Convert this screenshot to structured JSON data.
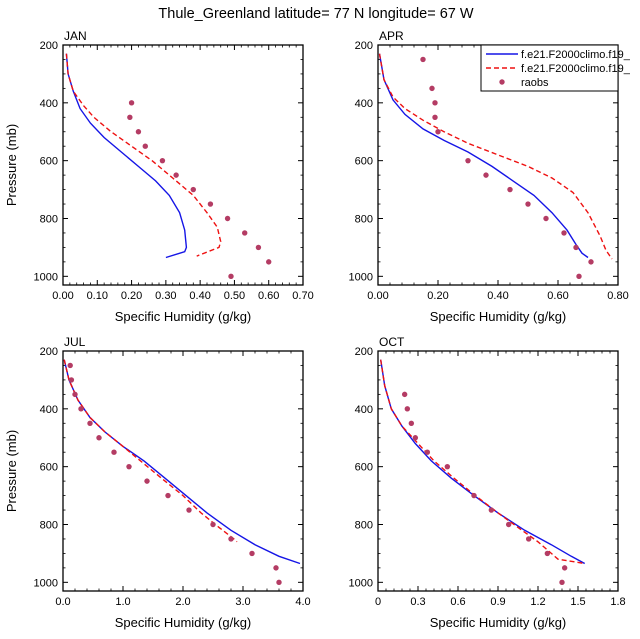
{
  "figure_title": "Thule_Greenland  latitude= 77 N longitude= 67 W",
  "colors": {
    "model1": "#1515e6",
    "model2": "#ee1111",
    "raobs": "#b43c64"
  },
  "legend": [
    {
      "label": "f.e21.F2000climo.f19_",
      "style": "solid",
      "color": "#1515e6"
    },
    {
      "label": "f.e21.F2000climo.f19_",
      "style": "dashed",
      "color": "#ee1111"
    },
    {
      "label": "raobs",
      "style": "marker",
      "color": "#b43c64"
    }
  ],
  "chart_data": [
    {
      "type": "line",
      "month": "JAN",
      "xlabel": "Specific Humidity (g/kg)",
      "ylabel": "Pressure (mb)",
      "xlim": [
        0,
        0.7
      ],
      "ylim": [
        1030,
        200
      ],
      "xticks": [
        "0.00",
        "0.10",
        "0.20",
        "0.30",
        "0.40",
        "0.50",
        "0.60",
        "0.70"
      ],
      "yticks": [
        "200",
        "400",
        "600",
        "800",
        "1000"
      ],
      "series": [
        {
          "style": "solid",
          "color": "#1515e6",
          "points": [
            [
              0.01,
              230
            ],
            [
              0.015,
              300
            ],
            [
              0.03,
              360
            ],
            [
              0.05,
              420
            ],
            [
              0.08,
              470
            ],
            [
              0.12,
              520
            ],
            [
              0.17,
              570
            ],
            [
              0.22,
              620
            ],
            [
              0.27,
              670
            ],
            [
              0.31,
              720
            ],
            [
              0.34,
              780
            ],
            [
              0.355,
              840
            ],
            [
              0.36,
              900
            ],
            [
              0.355,
              915
            ],
            [
              0.3,
              935
            ]
          ]
        },
        {
          "style": "dashed",
          "color": "#ee1111",
          "points": [
            [
              0.01,
              230
            ],
            [
              0.015,
              300
            ],
            [
              0.03,
              360
            ],
            [
              0.06,
              410
            ],
            [
              0.09,
              450
            ],
            [
              0.14,
              500
            ],
            [
              0.2,
              550
            ],
            [
              0.26,
              600
            ],
            [
              0.32,
              660
            ],
            [
              0.38,
              720
            ],
            [
              0.42,
              780
            ],
            [
              0.45,
              830
            ],
            [
              0.46,
              880
            ],
            [
              0.455,
              900
            ],
            [
              0.39,
              930
            ]
          ]
        },
        {
          "style": "marker",
          "color": "#b43c64",
          "points": [
            [
              0.2,
              400
            ],
            [
              0.195,
              450
            ],
            [
              0.22,
              500
            ],
            [
              0.24,
              550
            ],
            [
              0.29,
              600
            ],
            [
              0.33,
              650
            ],
            [
              0.38,
              700
            ],
            [
              0.43,
              750
            ],
            [
              0.48,
              800
            ],
            [
              0.53,
              850
            ],
            [
              0.57,
              900
            ],
            [
              0.6,
              950
            ],
            [
              0.49,
              1000
            ]
          ]
        }
      ]
    },
    {
      "type": "line",
      "month": "APR",
      "xlabel": "Specific Humidity (g/kg)",
      "ylabel": "",
      "xlim": [
        0,
        0.8
      ],
      "ylim": [
        1030,
        200
      ],
      "xticks": [
        "0.00",
        "0.20",
        "0.40",
        "0.60",
        "0.80"
      ],
      "yticks": [
        "200",
        "400",
        "600",
        "800",
        "1000"
      ],
      "series": [
        {
          "style": "solid",
          "color": "#1515e6",
          "points": [
            [
              0.005,
              230
            ],
            [
              0.02,
              320
            ],
            [
              0.05,
              390
            ],
            [
              0.09,
              440
            ],
            [
              0.15,
              490
            ],
            [
              0.22,
              530
            ],
            [
              0.3,
              570
            ],
            [
              0.38,
              620
            ],
            [
              0.45,
              670
            ],
            [
              0.52,
              720
            ],
            [
              0.58,
              780
            ],
            [
              0.63,
              840
            ],
            [
              0.66,
              890
            ],
            [
              0.68,
              920
            ],
            [
              0.7,
              935
            ]
          ]
        },
        {
          "style": "dashed",
          "color": "#ee1111",
          "points": [
            [
              0.005,
              230
            ],
            [
              0.02,
              320
            ],
            [
              0.05,
              380
            ],
            [
              0.09,
              420
            ],
            [
              0.15,
              460
            ],
            [
              0.22,
              500
            ],
            [
              0.3,
              540
            ],
            [
              0.4,
              580
            ],
            [
              0.5,
              620
            ],
            [
              0.58,
              660
            ],
            [
              0.65,
              710
            ],
            [
              0.7,
              780
            ],
            [
              0.74,
              860
            ],
            [
              0.76,
              910
            ],
            [
              0.78,
              940
            ]
          ]
        },
        {
          "style": "marker",
          "color": "#b43c64",
          "points": [
            [
              0.15,
              250
            ],
            [
              0.18,
              350
            ],
            [
              0.19,
              400
            ],
            [
              0.19,
              450
            ],
            [
              0.2,
              500
            ],
            [
              0.3,
              600
            ],
            [
              0.36,
              650
            ],
            [
              0.44,
              700
            ],
            [
              0.5,
              750
            ],
            [
              0.56,
              800
            ],
            [
              0.62,
              850
            ],
            [
              0.66,
              900
            ],
            [
              0.71,
              950
            ],
            [
              0.67,
              1000
            ]
          ]
        }
      ]
    },
    {
      "type": "line",
      "month": "JUL",
      "xlabel": "Specific Humidity (g/kg)",
      "ylabel": "Pressure (mb)",
      "xlim": [
        0,
        4.0
      ],
      "ylim": [
        1030,
        200
      ],
      "xticks": [
        "0.0",
        "1.0",
        "2.0",
        "3.0",
        "4.0"
      ],
      "yticks": [
        "200",
        "400",
        "600",
        "800",
        "1000"
      ],
      "series": [
        {
          "style": "solid",
          "color": "#1515e6",
          "points": [
            [
              0.02,
              230
            ],
            [
              0.1,
              300
            ],
            [
              0.25,
              370
            ],
            [
              0.45,
              430
            ],
            [
              0.7,
              480
            ],
            [
              1.0,
              530
            ],
            [
              1.35,
              580
            ],
            [
              1.7,
              640
            ],
            [
              2.05,
              700
            ],
            [
              2.4,
              760
            ],
            [
              2.8,
              820
            ],
            [
              3.2,
              870
            ],
            [
              3.6,
              910
            ],
            [
              3.95,
              935
            ]
          ]
        },
        {
          "style": "dashed",
          "color": "#ee1111",
          "points": [
            [
              0.02,
              230
            ],
            [
              0.1,
              300
            ],
            [
              0.25,
              370
            ],
            [
              0.45,
              430
            ],
            [
              0.7,
              480
            ],
            [
              1.0,
              530
            ],
            [
              1.35,
              590
            ],
            [
              1.7,
              650
            ],
            [
              2.0,
              700
            ],
            [
              2.3,
              760
            ],
            [
              2.6,
              810
            ],
            [
              2.85,
              850
            ],
            [
              2.9,
              860
            ]
          ]
        },
        {
          "style": "marker",
          "color": "#b43c64",
          "points": [
            [
              0.12,
              250
            ],
            [
              0.14,
              300
            ],
            [
              0.2,
              350
            ],
            [
              0.3,
              400
            ],
            [
              0.45,
              450
            ],
            [
              0.6,
              500
            ],
            [
              0.85,
              550
            ],
            [
              1.1,
              600
            ],
            [
              1.4,
              650
            ],
            [
              1.75,
              700
            ],
            [
              2.1,
              750
            ],
            [
              2.5,
              800
            ],
            [
              2.8,
              850
            ],
            [
              3.15,
              900
            ],
            [
              3.55,
              950
            ],
            [
              3.6,
              1000
            ]
          ]
        }
      ]
    },
    {
      "type": "line",
      "month": "OCT",
      "xlabel": "Specific Humidity (g/kg)",
      "ylabel": "",
      "xlim": [
        0,
        1.8
      ],
      "ylim": [
        1030,
        200
      ],
      "xticks": [
        "0",
        "0.3",
        "0.6",
        "0.9",
        "1.2",
        "1.5",
        "1.8"
      ],
      "yticks": [
        "200",
        "400",
        "600",
        "800",
        "1000"
      ],
      "series": [
        {
          "style": "solid",
          "color": "#1515e6",
          "points": [
            [
              0.02,
              230
            ],
            [
              0.05,
              320
            ],
            [
              0.1,
              400
            ],
            [
              0.18,
              460
            ],
            [
              0.28,
              520
            ],
            [
              0.4,
              580
            ],
            [
              0.55,
              640
            ],
            [
              0.72,
              700
            ],
            [
              0.9,
              760
            ],
            [
              1.1,
              820
            ],
            [
              1.3,
              870
            ],
            [
              1.45,
              910
            ],
            [
              1.55,
              935
            ]
          ]
        },
        {
          "style": "dashed",
          "color": "#ee1111",
          "points": [
            [
              0.02,
              230
            ],
            [
              0.05,
              320
            ],
            [
              0.1,
              400
            ],
            [
              0.18,
              460
            ],
            [
              0.3,
              520
            ],
            [
              0.42,
              580
            ],
            [
              0.57,
              640
            ],
            [
              0.73,
              700
            ],
            [
              0.9,
              760
            ],
            [
              1.05,
              810
            ],
            [
              1.2,
              860
            ],
            [
              1.35,
              920
            ],
            [
              1.55,
              935
            ]
          ]
        },
        {
          "style": "marker",
          "color": "#b43c64",
          "points": [
            [
              0.2,
              350
            ],
            [
              0.22,
              400
            ],
            [
              0.25,
              450
            ],
            [
              0.28,
              500
            ],
            [
              0.37,
              550
            ],
            [
              0.52,
              600
            ],
            [
              0.72,
              700
            ],
            [
              0.85,
              750
            ],
            [
              0.98,
              800
            ],
            [
              1.13,
              850
            ],
            [
              1.27,
              900
            ],
            [
              1.4,
              950
            ],
            [
              1.38,
              1000
            ]
          ]
        }
      ]
    }
  ]
}
